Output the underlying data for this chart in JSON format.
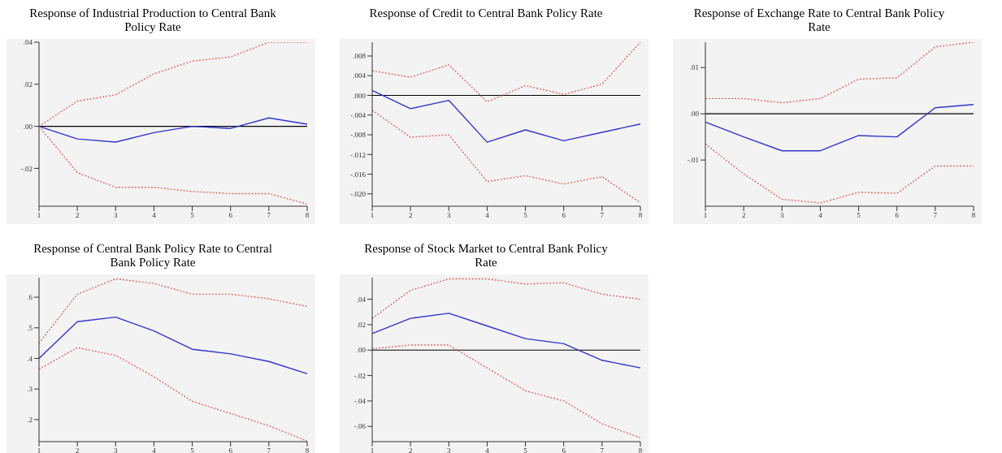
{
  "chart_data": [
    {
      "type": "line",
      "title": "Response of Industrial Production to Central Bank Policy Rate",
      "categories": [
        "1",
        "2",
        "3",
        "4",
        "5",
        "6",
        "7",
        "8"
      ],
      "ylim": [
        -0.038,
        0.04
      ],
      "yticks": [
        {
          "value": -0.02,
          "label": "-.02"
        },
        {
          "value": 0,
          "label": ".00"
        },
        {
          "value": 0.02,
          "label": ".02"
        },
        {
          "value": 0.04,
          "label": ".04"
        }
      ],
      "ref_lines": [
        {
          "axis": "y",
          "value": 0,
          "color": "#000000"
        }
      ],
      "series": [
        {
          "color": "#3333cc",
          "line_style": "solid",
          "values": [
            0,
            -0.006,
            -0.0075,
            -0.003,
            0,
            -0.001,
            0.004,
            0.001
          ]
        },
        {
          "color": "#e06666",
          "line_style": "dotted",
          "values": [
            0,
            0.012,
            0.015,
            0.025,
            0.031,
            0.033,
            0.04,
            0.04
          ]
        },
        {
          "color": "#e06666",
          "line_style": "dotted",
          "values": [
            0,
            -0.022,
            -0.029,
            -0.029,
            -0.031,
            -0.032,
            -0.032,
            -0.037
          ]
        }
      ]
    },
    {
      "type": "line",
      "title": "Response of Credit to Central Bank Policy Rate",
      "categories": [
        "1",
        "2",
        "3",
        "4",
        "5",
        "6",
        "7",
        "8"
      ],
      "ylim": [
        -0.0225,
        0.0108
      ],
      "yticks": [
        {
          "value": -0.02,
          "label": "-.020"
        },
        {
          "value": -0.016,
          "label": "-.016"
        },
        {
          "value": -0.012,
          "label": "-.012"
        },
        {
          "value": -0.008,
          "label": "-.008"
        },
        {
          "value": -0.004,
          "label": "-.004"
        },
        {
          "value": 0,
          "label": ".000"
        },
        {
          "value": 0.004,
          "label": ".004"
        },
        {
          "value": 0.008,
          "label": ".008"
        }
      ],
      "ref_lines": [
        {
          "axis": "y",
          "value": 0,
          "color": "#000000"
        }
      ],
      "series": [
        {
          "color": "#3333cc",
          "line_style": "solid",
          "values": [
            0.001,
            -0.0027,
            -0.001,
            -0.0095,
            -0.007,
            -0.0092,
            -0.0075,
            -0.0058
          ]
        },
        {
          "color": "#e06666",
          "line_style": "dotted",
          "values": [
            0.005,
            0.0037,
            0.0062,
            -0.0013,
            0.002,
            0.0002,
            0.0023,
            0.0108
          ]
        },
        {
          "color": "#e06666",
          "line_style": "dotted",
          "values": [
            -0.003,
            -0.0085,
            -0.008,
            -0.0175,
            -0.0163,
            -0.018,
            -0.0165,
            -0.0218
          ]
        }
      ]
    },
    {
      "type": "line",
      "title": "Response of Exchange Rate to Central Bank Policy Rate",
      "categories": [
        "1",
        "2",
        "3",
        "4",
        "5",
        "6",
        "7",
        "8"
      ],
      "ylim": [
        -0.02,
        0.0155
      ],
      "yticks": [
        {
          "value": -0.01,
          "label": "-.01"
        },
        {
          "value": 0,
          "label": ".00"
        },
        {
          "value": 0.01,
          "label": ".01"
        }
      ],
      "ref_lines": [
        {
          "axis": "y",
          "value": 0,
          "color": "#000000"
        }
      ],
      "series": [
        {
          "color": "#3333cc",
          "line_style": "solid",
          "values": [
            -0.0018,
            -0.005,
            -0.008,
            -0.008,
            -0.0047,
            -0.005,
            0.0013,
            0.002
          ]
        },
        {
          "color": "#e06666",
          "line_style": "dotted",
          "values": [
            0.0033,
            0.0033,
            0.0024,
            0.0033,
            0.0075,
            0.0078,
            0.0145,
            0.0155
          ]
        },
        {
          "color": "#e06666",
          "line_style": "dotted",
          "values": [
            -0.0065,
            -0.013,
            -0.0185,
            -0.0193,
            -0.017,
            -0.0172,
            -0.0113,
            -0.0113
          ]
        }
      ]
    },
    {
      "type": "line",
      "title": "Response of Central Bank Policy Rate to Central Bank Policy Rate",
      "categories": [
        "1",
        "2",
        "3",
        "4",
        "5",
        "6",
        "7",
        "8"
      ],
      "ylim": [
        0.128,
        0.664
      ],
      "yticks": [
        {
          "value": 0.2,
          "label": ".2"
        },
        {
          "value": 0.3,
          "label": ".3"
        },
        {
          "value": 0.4,
          "label": ".4"
        },
        {
          "value": 0.5,
          "label": ".5"
        },
        {
          "value": 0.6,
          "label": ".6"
        }
      ],
      "series": [
        {
          "color": "#3333cc",
          "line_style": "solid",
          "values": [
            0.4,
            0.52,
            0.535,
            0.49,
            0.43,
            0.415,
            0.39,
            0.35
          ]
        },
        {
          "color": "#e06666",
          "line_style": "dotted",
          "values": [
            0.45,
            0.61,
            0.66,
            0.645,
            0.61,
            0.61,
            0.595,
            0.57
          ]
        },
        {
          "color": "#e06666",
          "line_style": "dotted",
          "values": [
            0.365,
            0.435,
            0.41,
            0.34,
            0.26,
            0.22,
            0.18,
            0.13
          ]
        }
      ]
    },
    {
      "type": "line",
      "title": "Response of Stock Market to Central Bank Policy Rate",
      "categories": [
        "1",
        "2",
        "3",
        "4",
        "5",
        "6",
        "7",
        "8"
      ],
      "ylim": [
        -0.072,
        0.057
      ],
      "yticks": [
        {
          "value": -0.06,
          "label": "-.06"
        },
        {
          "value": -0.04,
          "label": "-.04"
        },
        {
          "value": -0.02,
          "label": "-.02"
        },
        {
          "value": 0,
          "label": ".00"
        },
        {
          "value": 0.02,
          "label": ".02"
        },
        {
          "value": 0.04,
          "label": ".04"
        }
      ],
      "ref_lines": [
        {
          "axis": "y",
          "value": 0,
          "color": "#000000"
        }
      ],
      "series": [
        {
          "color": "#3333cc",
          "line_style": "solid",
          "values": [
            0.013,
            0.025,
            0.029,
            0.019,
            0.009,
            0.005,
            -0.008,
            -0.014
          ]
        },
        {
          "color": "#e06666",
          "line_style": "dotted",
          "values": [
            0.025,
            0.047,
            0.056,
            0.056,
            0.052,
            0.053,
            0.044,
            0.04
          ]
        },
        {
          "color": "#e06666",
          "line_style": "dotted",
          "values": [
            0.001,
            0.004,
            0.004,
            -0.014,
            -0.032,
            -0.04,
            -0.058,
            -0.069
          ]
        }
      ]
    }
  ]
}
